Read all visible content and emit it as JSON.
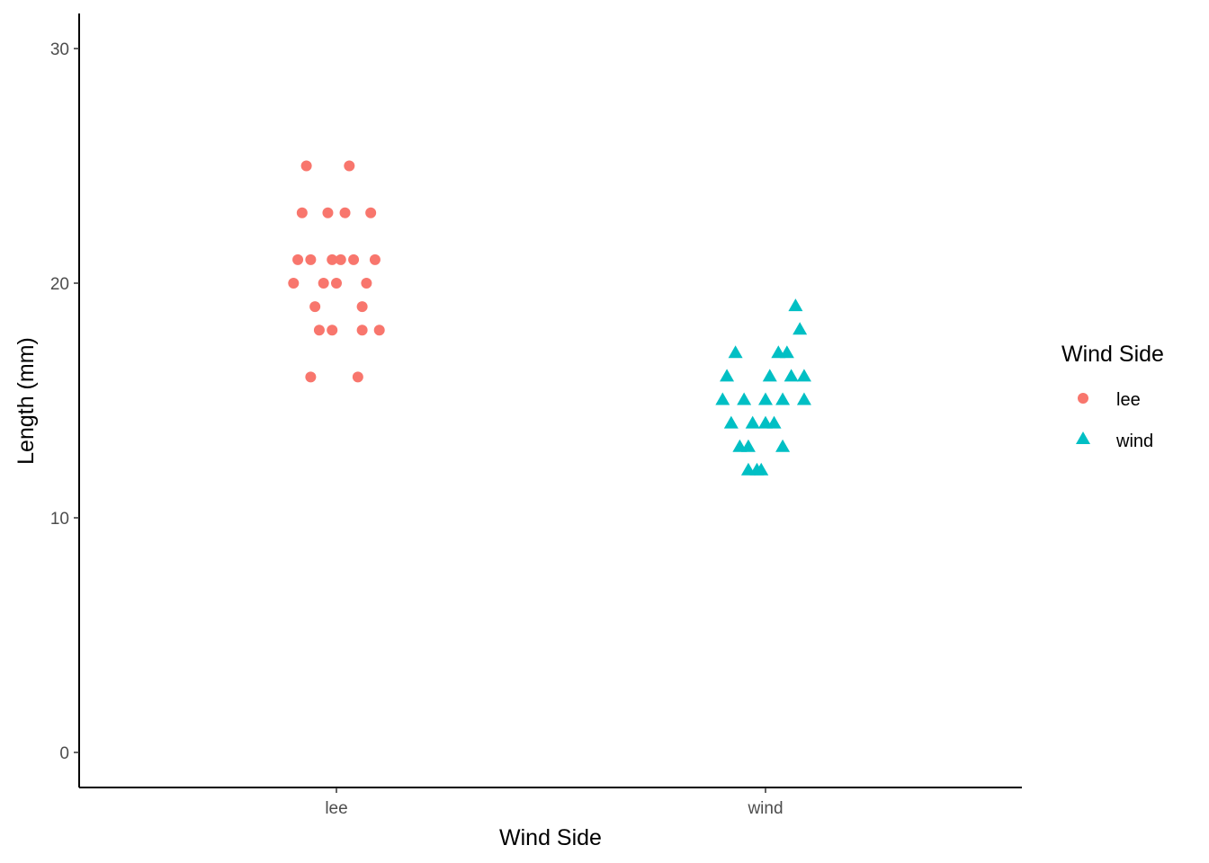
{
  "chart_data": {
    "type": "scatter",
    "title": "",
    "xlabel": "Wind Side",
    "ylabel": "Length (mm)",
    "categories": [
      "lee",
      "wind"
    ],
    "ylim": [
      -1.4,
      31.5
    ],
    "yticks": [
      0,
      10,
      20,
      30
    ],
    "grid": false,
    "legend": {
      "title": "Wind Side",
      "position": "right",
      "entries": [
        {
          "label": "lee",
          "shape": "circle",
          "color": "#F8766D"
        },
        {
          "label": "wind",
          "shape": "triangle",
          "color": "#00BFC4"
        }
      ]
    },
    "series": [
      {
        "category": "lee",
        "color": "#F8766D",
        "shape": "circle",
        "points": [
          {
            "x": 0.93,
            "y": 25
          },
          {
            "x": 1.03,
            "y": 25
          },
          {
            "x": 0.92,
            "y": 23
          },
          {
            "x": 0.98,
            "y": 23
          },
          {
            "x": 1.02,
            "y": 23
          },
          {
            "x": 1.08,
            "y": 23
          },
          {
            "x": 0.91,
            "y": 21
          },
          {
            "x": 0.94,
            "y": 21
          },
          {
            "x": 0.99,
            "y": 21
          },
          {
            "x": 1.01,
            "y": 21
          },
          {
            "x": 1.04,
            "y": 21
          },
          {
            "x": 1.09,
            "y": 21
          },
          {
            "x": 0.9,
            "y": 20
          },
          {
            "x": 0.97,
            "y": 20
          },
          {
            "x": 1.0,
            "y": 20
          },
          {
            "x": 1.07,
            "y": 20
          },
          {
            "x": 0.95,
            "y": 19
          },
          {
            "x": 1.06,
            "y": 19
          },
          {
            "x": 0.96,
            "y": 18
          },
          {
            "x": 0.99,
            "y": 18
          },
          {
            "x": 1.06,
            "y": 18
          },
          {
            "x": 1.1,
            "y": 18
          },
          {
            "x": 0.94,
            "y": 16
          },
          {
            "x": 1.05,
            "y": 16
          }
        ]
      },
      {
        "category": "wind",
        "color": "#00BFC4",
        "shape": "triangle",
        "points": [
          {
            "x": 2.07,
            "y": 19
          },
          {
            "x": 2.08,
            "y": 18
          },
          {
            "x": 1.93,
            "y": 17
          },
          {
            "x": 2.03,
            "y": 17
          },
          {
            "x": 2.05,
            "y": 17
          },
          {
            "x": 1.91,
            "y": 16
          },
          {
            "x": 2.01,
            "y": 16
          },
          {
            "x": 2.06,
            "y": 16
          },
          {
            "x": 2.09,
            "y": 16
          },
          {
            "x": 1.9,
            "y": 15
          },
          {
            "x": 1.95,
            "y": 15
          },
          {
            "x": 2.0,
            "y": 15
          },
          {
            "x": 2.04,
            "y": 15
          },
          {
            "x": 2.09,
            "y": 15
          },
          {
            "x": 1.92,
            "y": 14
          },
          {
            "x": 1.97,
            "y": 14
          },
          {
            "x": 2.0,
            "y": 14
          },
          {
            "x": 2.02,
            "y": 14
          },
          {
            "x": 1.94,
            "y": 13
          },
          {
            "x": 1.96,
            "y": 13
          },
          {
            "x": 2.04,
            "y": 13
          },
          {
            "x": 1.96,
            "y": 12
          },
          {
            "x": 1.98,
            "y": 12
          },
          {
            "x": 1.99,
            "y": 12
          }
        ]
      }
    ]
  }
}
